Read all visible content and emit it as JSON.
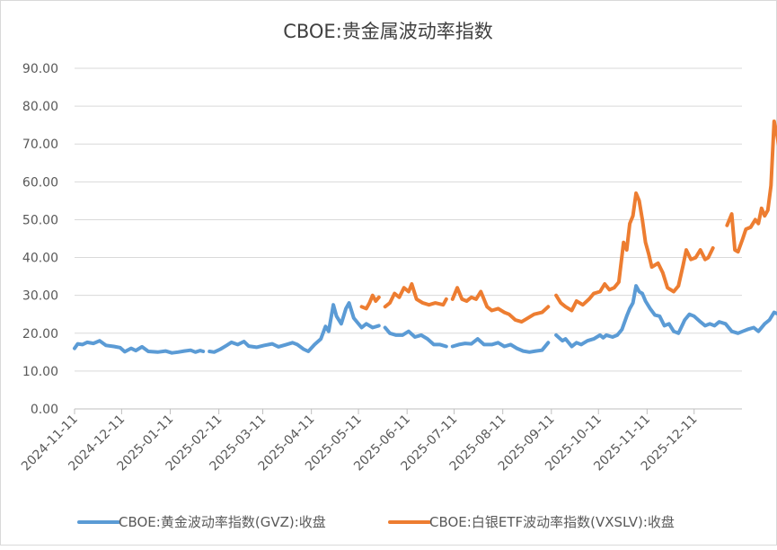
{
  "chart_data": {
    "type": "line",
    "title": "CBOE:贵金属波动率指数",
    "xlabel": "",
    "ylabel": "",
    "ylim": [
      0,
      90
    ],
    "y_ticks": [
      "0.00",
      "10.00",
      "20.00",
      "30.00",
      "40.00",
      "50.00",
      "60.00",
      "70.00",
      "80.00",
      "90.00"
    ],
    "x_ticks": [
      "2024-11-11",
      "2024-12-11",
      "2025-01-11",
      "2025-02-11",
      "2025-03-11",
      "2025-04-11",
      "2025-05-11",
      "2025-06-11",
      "2025-07-11",
      "2025-08-11",
      "2025-09-11",
      "2025-10-11",
      "2025-11-11",
      "2025-12-11"
    ],
    "grid": "horizontal",
    "legend_position": "bottom",
    "series": [
      {
        "name": "CBOE:黄金波动率指数(GVZ):收盘",
        "color": "#5B9BD5",
        "segments": [
          [
            [
              "2024-11-11",
              16.0
            ],
            [
              "2024-11-13",
              17.2
            ],
            [
              "2024-11-16",
              17.0
            ],
            [
              "2024-11-19",
              17.6
            ],
            [
              "2024-11-23",
              17.3
            ],
            [
              "2024-11-27",
              18.0
            ],
            [
              "2024-12-01",
              16.8
            ],
            [
              "2024-12-06",
              16.5
            ],
            [
              "2024-12-10",
              16.2
            ],
            [
              "2024-12-13",
              15.1
            ],
            [
              "2024-12-17",
              16.0
            ],
            [
              "2024-12-20",
              15.4
            ],
            [
              "2024-12-24",
              16.4
            ],
            [
              "2024-12-28",
              15.2
            ],
            [
              "2025-01-03",
              15.0
            ],
            [
              "2025-01-08",
              15.3
            ],
            [
              "2025-01-12",
              14.8
            ],
            [
              "2025-01-16",
              15.0
            ],
            [
              "2025-01-20",
              15.3
            ],
            [
              "2025-01-24",
              15.5
            ],
            [
              "2025-01-27",
              15.0
            ],
            [
              "2025-01-30",
              15.4
            ],
            [
              "2025-02-01",
              15.2
            ]
          ],
          [
            [
              "2025-02-05",
              15.2
            ],
            [
              "2025-02-08",
              15.0
            ],
            [
              "2025-02-12",
              15.8
            ],
            [
              "2025-02-16",
              16.8
            ],
            [
              "2025-02-19",
              17.6
            ],
            [
              "2025-02-23",
              17.0
            ],
            [
              "2025-02-27",
              17.8
            ],
            [
              "2025-03-02",
              16.6
            ],
            [
              "2025-03-07",
              16.3
            ],
            [
              "2025-03-12",
              16.8
            ],
            [
              "2025-03-17",
              17.2
            ],
            [
              "2025-03-21",
              16.4
            ],
            [
              "2025-03-26",
              17.0
            ],
            [
              "2025-03-30",
              17.5
            ],
            [
              "2025-04-02",
              17.0
            ],
            [
              "2025-04-06",
              15.8
            ],
            [
              "2025-04-09",
              15.2
            ],
            [
              "2025-04-13",
              17.0
            ],
            [
              "2025-04-17",
              18.5
            ],
            [
              "2025-04-20",
              21.8
            ],
            [
              "2025-04-22",
              20.5
            ],
            [
              "2025-04-25",
              27.5
            ],
            [
              "2025-04-27",
              24.5
            ],
            [
              "2025-04-30",
              22.5
            ],
            [
              "2025-05-03",
              26.5
            ],
            [
              "2025-05-05",
              28.0
            ],
            [
              "2025-05-08",
              24.0
            ],
            [
              "2025-05-10",
              23.0
            ],
            [
              "2025-05-13",
              21.5
            ],
            [
              "2025-05-16",
              22.5
            ],
            [
              "2025-05-18",
              22.0
            ],
            [
              "2025-05-20",
              21.5
            ],
            [
              "2025-05-24",
              22.0
            ]
          ],
          [
            [
              "2025-05-28",
              21.5
            ],
            [
              "2025-05-31",
              20.0
            ],
            [
              "2025-06-04",
              19.5
            ],
            [
              "2025-06-08",
              19.5
            ],
            [
              "2025-06-12",
              20.5
            ],
            [
              "2025-06-16",
              19.0
            ],
            [
              "2025-06-20",
              19.5
            ],
            [
              "2025-06-24",
              18.5
            ],
            [
              "2025-06-28",
              17.0
            ],
            [
              "2025-07-02",
              17.0
            ],
            [
              "2025-07-06",
              16.5
            ]
          ],
          [
            [
              "2025-07-10",
              16.5
            ],
            [
              "2025-07-14",
              17.0
            ],
            [
              "2025-07-18",
              17.3
            ],
            [
              "2025-07-22",
              17.2
            ],
            [
              "2025-07-26",
              18.5
            ],
            [
              "2025-07-30",
              17.0
            ],
            [
              "2025-08-04",
              17.0
            ],
            [
              "2025-08-08",
              17.5
            ],
            [
              "2025-08-12",
              16.5
            ],
            [
              "2025-08-16",
              17.0
            ],
            [
              "2025-08-20",
              16.0
            ],
            [
              "2025-08-24",
              15.3
            ],
            [
              "2025-08-28",
              15.0
            ],
            [
              "2025-09-01",
              15.3
            ],
            [
              "2025-09-05",
              15.5
            ],
            [
              "2025-09-09",
              17.5
            ]
          ],
          [
            [
              "2025-09-14",
              19.5
            ],
            [
              "2025-09-18",
              18.0
            ],
            [
              "2025-09-20",
              18.5
            ],
            [
              "2025-09-24",
              16.5
            ],
            [
              "2025-09-27",
              17.5
            ],
            [
              "2025-09-30",
              17.0
            ],
            [
              "2025-10-04",
              18.0
            ],
            [
              "2025-10-08",
              18.5
            ],
            [
              "2025-10-12",
              19.5
            ],
            [
              "2025-10-14",
              18.8
            ],
            [
              "2025-10-16",
              19.5
            ],
            [
              "2025-10-20",
              19.0
            ],
            [
              "2025-10-23",
              19.5
            ],
            [
              "2025-10-26",
              21.0
            ],
            [
              "2025-10-29",
              24.5
            ],
            [
              "2025-10-31",
              26.5
            ],
            [
              "2025-11-02",
              28.0
            ],
            [
              "2025-11-04",
              32.5
            ],
            [
              "2025-11-06",
              31.0
            ],
            [
              "2025-11-08",
              30.5
            ],
            [
              "2025-11-10",
              28.5
            ],
            [
              "2025-11-13",
              26.5
            ],
            [
              "2025-11-16",
              24.8
            ],
            [
              "2025-11-19",
              24.5
            ],
            [
              "2025-11-22",
              22.0
            ],
            [
              "2025-11-25",
              22.5
            ],
            [
              "2025-11-28",
              20.5
            ],
            [
              "2025-12-01",
              20.0
            ],
            [
              "2025-12-05",
              23.5
            ],
            [
              "2025-12-08",
              25.0
            ],
            [
              "2025-12-11",
              24.5
            ],
            [
              "2025-12-15",
              23.0
            ],
            [
              "2025-12-18",
              22.0
            ],
            [
              "2025-12-21",
              22.5
            ],
            [
              "2025-12-24",
              22.0
            ],
            [
              "2025-12-27",
              23.0
            ],
            [
              "2025-12-31",
              22.5
            ],
            [
              "2026-01-04",
              20.5
            ],
            [
              "2026-01-08",
              20.0
            ],
            [
              "2026-01-11",
              20.5
            ],
            [
              "2026-01-14",
              21.0
            ],
            [
              "2026-01-18",
              21.5
            ],
            [
              "2026-01-21",
              20.5
            ],
            [
              "2026-01-25",
              22.5
            ],
            [
              "2026-01-28",
              23.5
            ],
            [
              "2026-01-31",
              25.5
            ],
            [
              "2026-02-03",
              25.0
            ],
            [
              "2026-02-05",
              23.5
            ]
          ]
        ]
      },
      {
        "name": "CBOE:白银ETF波动率指数(VXSLV):收盘",
        "color": "#ED7D31",
        "segments": [
          [
            [
              "2025-05-13",
              27.0
            ],
            [
              "2025-05-16",
              26.5
            ],
            [
              "2025-05-18",
              28.0
            ],
            [
              "2025-05-20",
              30.0
            ],
            [
              "2025-05-22",
              28.5
            ],
            [
              "2025-05-24",
              29.5
            ]
          ],
          [
            [
              "2025-05-28",
              27.0
            ],
            [
              "2025-05-31",
              28.0
            ],
            [
              "2025-06-03",
              30.5
            ],
            [
              "2025-06-06",
              29.5
            ],
            [
              "2025-06-09",
              32.0
            ],
            [
              "2025-06-12",
              31.0
            ],
            [
              "2025-06-14",
              33.0
            ],
            [
              "2025-06-17",
              29.0
            ],
            [
              "2025-06-21",
              28.0
            ],
            [
              "2025-06-25",
              27.5
            ],
            [
              "2025-06-29",
              28.0
            ],
            [
              "2025-07-04",
              27.5
            ],
            [
              "2025-07-06",
              29.0
            ]
          ],
          [
            [
              "2025-07-10",
              29.0
            ],
            [
              "2025-07-13",
              32.0
            ],
            [
              "2025-07-16",
              29.0
            ],
            [
              "2025-07-19",
              28.5
            ],
            [
              "2025-07-22",
              29.5
            ],
            [
              "2025-07-25",
              29.0
            ],
            [
              "2025-07-28",
              31.0
            ],
            [
              "2025-08-01",
              27.0
            ],
            [
              "2025-08-04",
              26.0
            ],
            [
              "2025-08-08",
              26.5
            ],
            [
              "2025-08-12",
              25.5
            ],
            [
              "2025-08-15",
              25.0
            ],
            [
              "2025-08-19",
              23.5
            ],
            [
              "2025-08-23",
              23.0
            ],
            [
              "2025-08-27",
              24.0
            ],
            [
              "2025-08-31",
              25.0
            ],
            [
              "2025-09-05",
              25.5
            ],
            [
              "2025-09-09",
              27.0
            ]
          ],
          [
            [
              "2025-09-14",
              30.0
            ],
            [
              "2025-09-17",
              28.0
            ],
            [
              "2025-09-20",
              27.0
            ],
            [
              "2025-09-24",
              26.0
            ],
            [
              "2025-09-27",
              28.5
            ],
            [
              "2025-10-01",
              27.5
            ],
            [
              "2025-10-05",
              29.0
            ],
            [
              "2025-10-08",
              30.5
            ],
            [
              "2025-10-12",
              31.0
            ],
            [
              "2025-10-15",
              33.0
            ],
            [
              "2025-10-18",
              31.5
            ],
            [
              "2025-10-21",
              32.0
            ],
            [
              "2025-10-24",
              33.5
            ],
            [
              "2025-10-27",
              44.0
            ],
            [
              "2025-10-29",
              42.0
            ],
            [
              "2025-10-31",
              49.0
            ],
            [
              "2025-11-02",
              51.0
            ],
            [
              "2025-11-04",
              57.0
            ],
            [
              "2025-11-06",
              55.0
            ],
            [
              "2025-11-08",
              50.0
            ],
            [
              "2025-11-10",
              44.0
            ],
            [
              "2025-11-12",
              41.0
            ],
            [
              "2025-11-14",
              37.5
            ],
            [
              "2025-11-18",
              38.5
            ],
            [
              "2025-11-21",
              36.0
            ],
            [
              "2025-11-24",
              32.0
            ],
            [
              "2025-11-28",
              31.0
            ],
            [
              "2025-12-01",
              32.5
            ],
            [
              "2025-12-04",
              38.0
            ],
            [
              "2025-12-06",
              42.0
            ],
            [
              "2025-12-09",
              39.5
            ],
            [
              "2025-12-12",
              40.0
            ],
            [
              "2025-12-15",
              42.0
            ],
            [
              "2025-12-18",
              39.5
            ],
            [
              "2025-12-20",
              40.0
            ],
            [
              "2025-12-23",
              42.5
            ]
          ],
          [
            [
              "2026-01-01",
              48.5
            ],
            [
              "2026-01-04",
              51.5
            ],
            [
              "2026-01-06",
              42.0
            ],
            [
              "2026-01-08",
              41.5
            ],
            [
              "2026-01-11",
              45.0
            ],
            [
              "2026-01-13",
              47.5
            ],
            [
              "2026-01-16",
              48.0
            ],
            [
              "2026-01-19",
              50.0
            ],
            [
              "2026-01-21",
              49.0
            ],
            [
              "2026-01-23",
              53.0
            ],
            [
              "2026-01-25",
              51.0
            ],
            [
              "2026-01-27",
              52.5
            ],
            [
              "2026-01-29",
              59.0
            ],
            [
              "2026-01-31",
              76.0
            ],
            [
              "2026-02-02",
              72.0
            ],
            [
              "2026-02-03",
              69.5
            ],
            [
              "2026-02-04",
              70.0
            ],
            [
              "2026-02-05",
              67.5
            ],
            [
              "2026-02-06",
              66.5
            ]
          ]
        ]
      }
    ]
  }
}
